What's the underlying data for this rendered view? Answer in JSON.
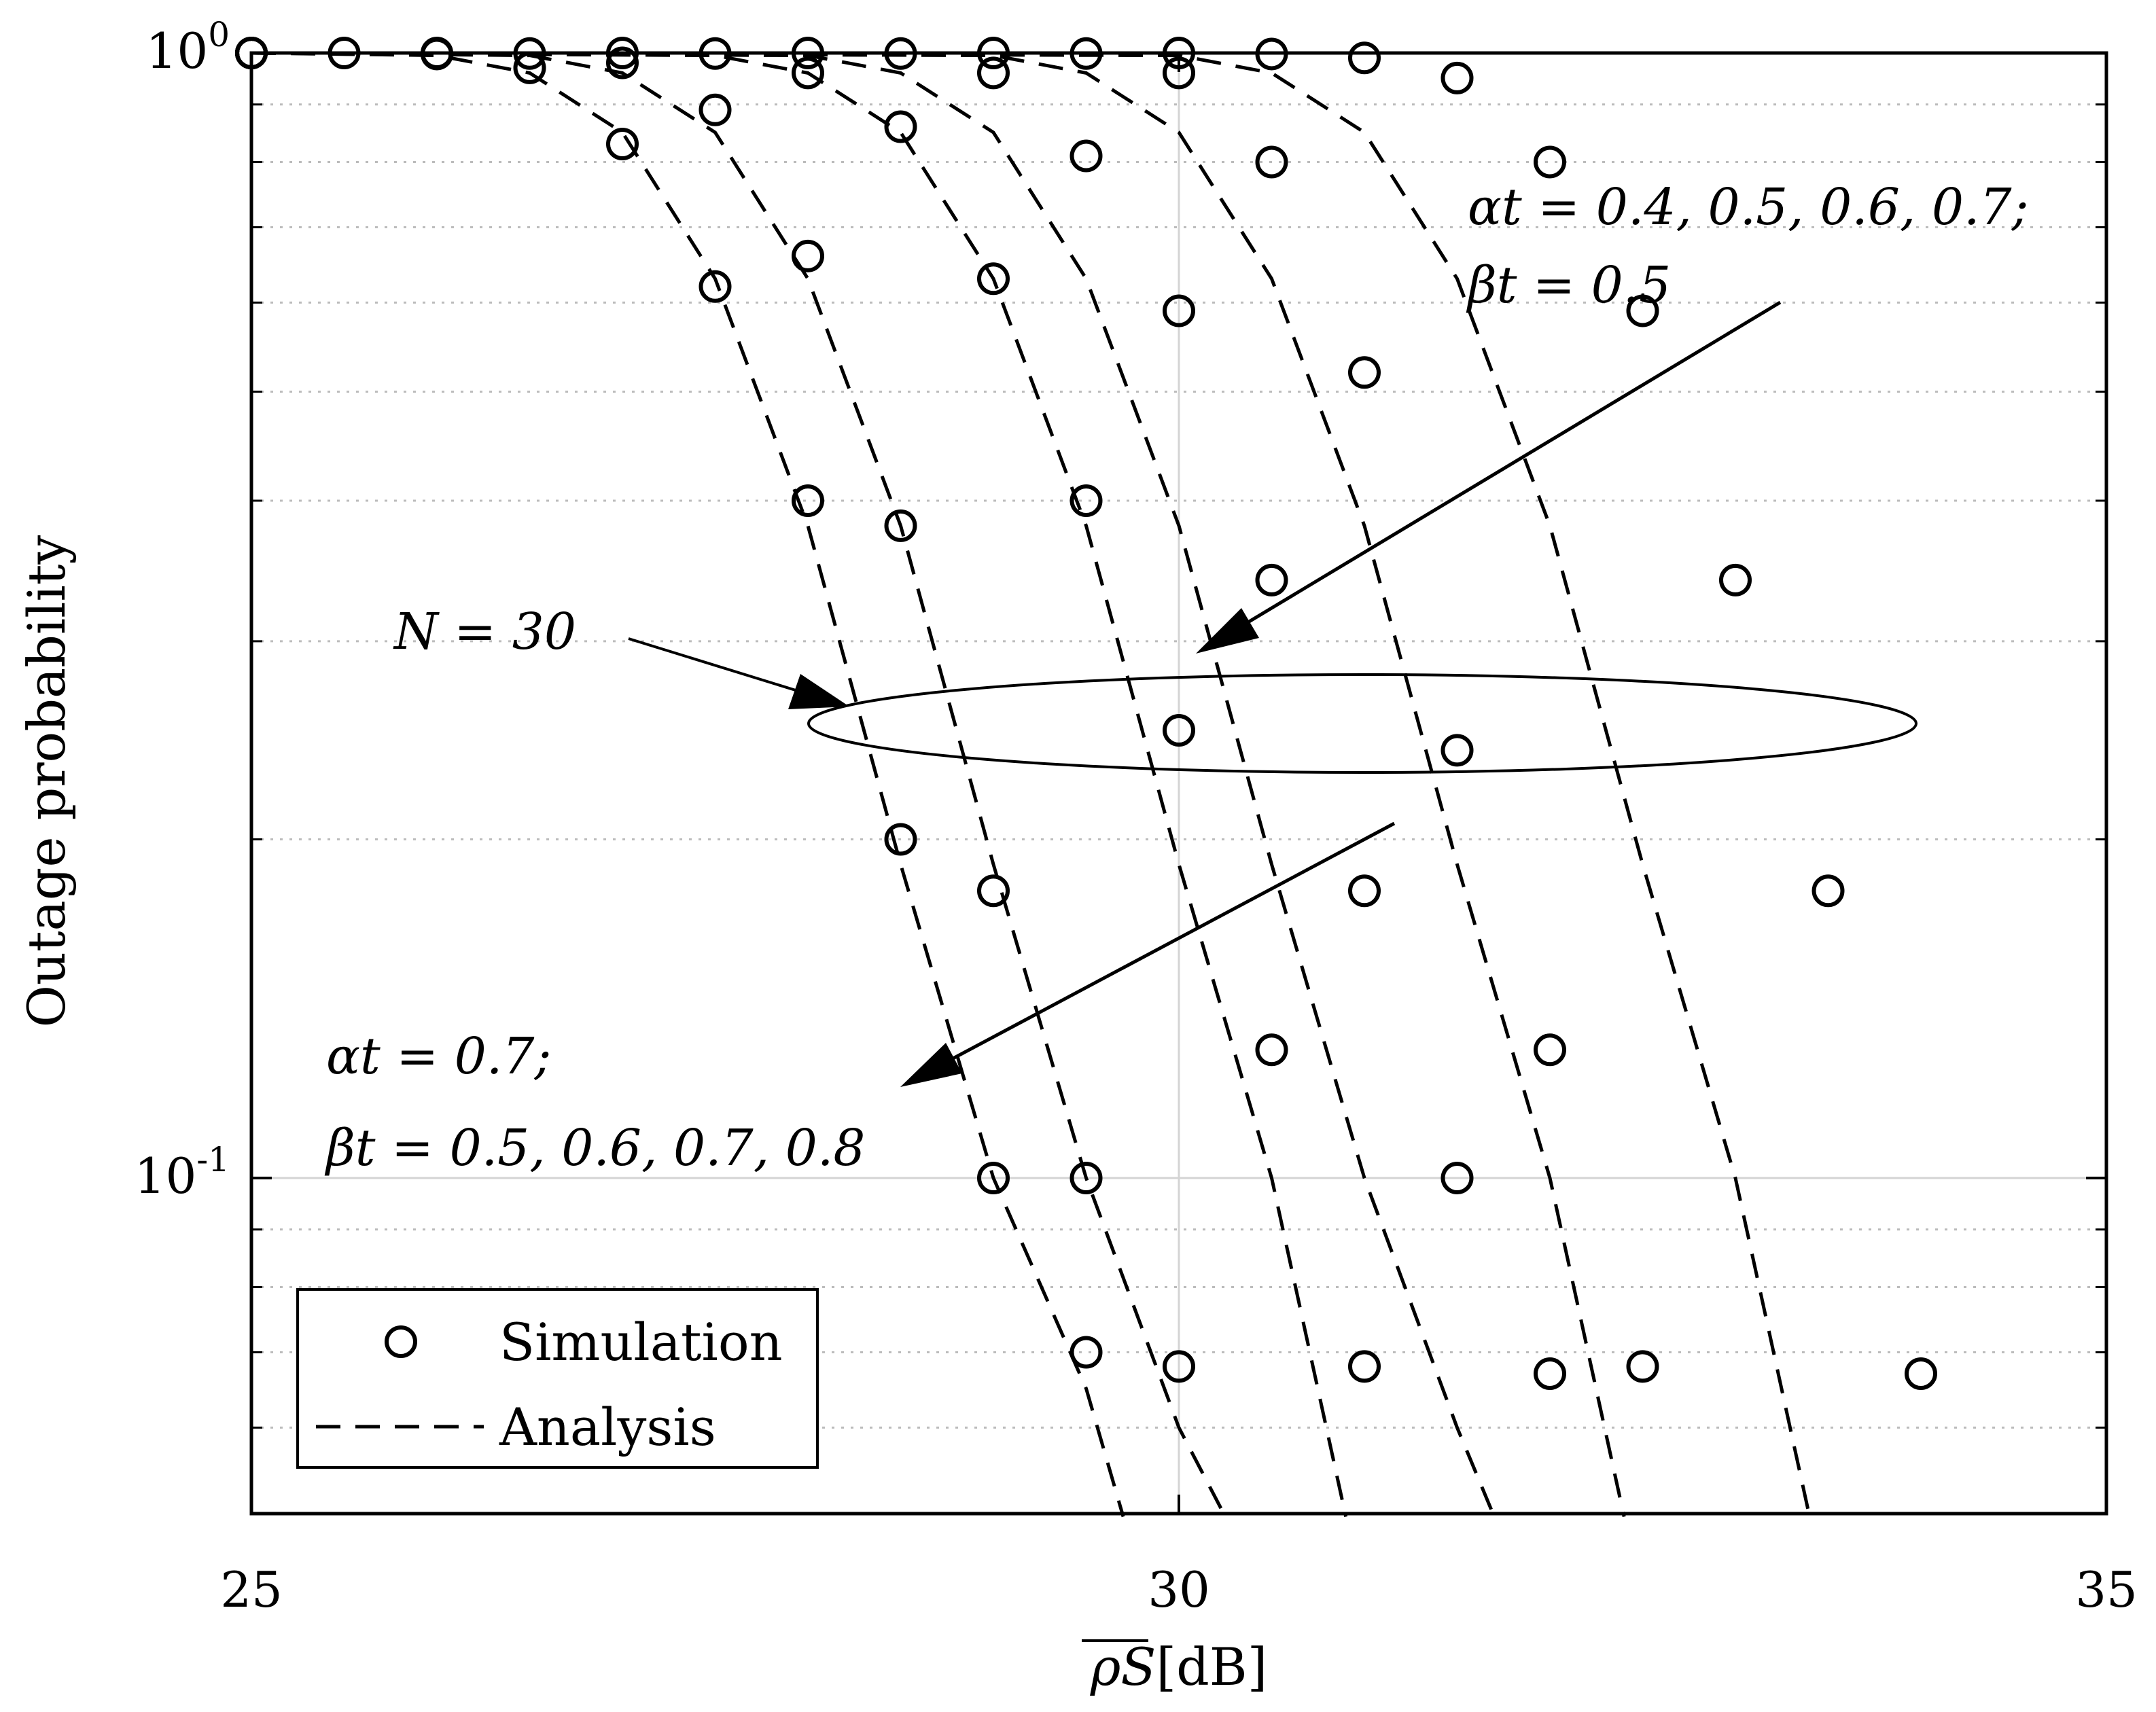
{
  "chart_data": {
    "type": "line",
    "xlabel_math": "ρS",
    "xlabel_unit": "[dB]",
    "ylabel": "Outage probability",
    "xlim": [
      25,
      35
    ],
    "ylim": [
      0.05,
      1
    ],
    "yscale": "log",
    "grid": true,
    "x_ticks": [
      "25",
      "30",
      "35"
    ],
    "y_ticks": [
      {
        "base": "10",
        "exp": "0",
        "value": 1
      },
      {
        "base": "10",
        "exp": "-1",
        "value": 0.1
      }
    ],
    "legend": {
      "position": "bottom-left",
      "entries": [
        {
          "label": "Simulation",
          "style": "circle-marker"
        },
        {
          "label": "Analysis",
          "style": "dashed-line"
        }
      ]
    },
    "annotations": [
      {
        "text": "N = 30"
      },
      {
        "text": "αt = 0.4, 0.5, 0.6, 0.7;"
      },
      {
        "text": "βt = 0.5"
      },
      {
        "text": "αt = 0.7;"
      },
      {
        "text": "βt = 0.5, 0.6, 0.7, 0.8"
      }
    ],
    "series": [
      {
        "analysis": [
          [
            25,
            1
          ],
          [
            26,
            0.995
          ],
          [
            26.5,
            0.96
          ],
          [
            27,
            0.85
          ],
          [
            27.5,
            0.63
          ],
          [
            28,
            0.38
          ],
          [
            28.5,
            0.19
          ],
          [
            29,
            0.1
          ],
          [
            29.5,
            0.065
          ],
          [
            29.7,
            0.05
          ]
        ],
        "simulation": [
          [
            25,
            1
          ],
          [
            25.5,
            1
          ],
          [
            26,
            0.998
          ],
          [
            26.5,
            0.97
          ],
          [
            27,
            0.83
          ],
          [
            27.5,
            0.62
          ],
          [
            28,
            0.4
          ],
          [
            28.5,
            0.2
          ],
          [
            29,
            0.1
          ],
          [
            29.5,
            0.07
          ]
        ]
      },
      {
        "analysis": [
          [
            25,
            1
          ],
          [
            26.5,
            0.995
          ],
          [
            27,
            0.96
          ],
          [
            27.5,
            0.85
          ],
          [
            28,
            0.63
          ],
          [
            28.5,
            0.38
          ],
          [
            29,
            0.19
          ],
          [
            29.5,
            0.1
          ],
          [
            30,
            0.06
          ],
          [
            30.25,
            0.05
          ]
        ],
        "simulation": [
          [
            25,
            1
          ],
          [
            26,
            1
          ],
          [
            26.5,
            0.999
          ],
          [
            27,
            0.98
          ],
          [
            27.5,
            0.89
          ],
          [
            28,
            0.66
          ],
          [
            28.5,
            0.38
          ],
          [
            29,
            0.18
          ],
          [
            29.5,
            0.1
          ],
          [
            30,
            0.068
          ]
        ]
      },
      {
        "analysis": [
          [
            25,
            1
          ],
          [
            27.5,
            0.995
          ],
          [
            28,
            0.96
          ],
          [
            28.5,
            0.85
          ],
          [
            29,
            0.63
          ],
          [
            29.5,
            0.38
          ],
          [
            30,
            0.19
          ],
          [
            30.5,
            0.1
          ],
          [
            30.9,
            0.05
          ]
        ],
        "simulation": [
          [
            25,
            1
          ],
          [
            27,
            1
          ],
          [
            27.5,
            0.999
          ],
          [
            28,
            0.96
          ],
          [
            28.5,
            0.86
          ],
          [
            29,
            0.63
          ],
          [
            29.5,
            0.4
          ],
          [
            30,
            0.25
          ],
          [
            30.5,
            0.13
          ],
          [
            31,
            0.068
          ]
        ]
      },
      {
        "analysis": [
          [
            25,
            1
          ],
          [
            28,
            0.995
          ],
          [
            28.5,
            0.96
          ],
          [
            29,
            0.85
          ],
          [
            29.5,
            0.63
          ],
          [
            30,
            0.38
          ],
          [
            30.5,
            0.19
          ],
          [
            31,
            0.1
          ],
          [
            31.5,
            0.06
          ],
          [
            31.7,
            0.05
          ]
        ],
        "simulation": [
          [
            25,
            1
          ],
          [
            28,
            1
          ],
          [
            28.5,
            0.999
          ],
          [
            29,
            0.96
          ],
          [
            29.5,
            0.81
          ],
          [
            30,
            0.59
          ],
          [
            30.5,
            0.34
          ],
          [
            31,
            0.18
          ],
          [
            31.5,
            0.1
          ],
          [
            32,
            0.067
          ]
        ]
      },
      {
        "analysis": [
          [
            25,
            1
          ],
          [
            29,
            0.995
          ],
          [
            29.5,
            0.96
          ],
          [
            30,
            0.85
          ],
          [
            30.5,
            0.63
          ],
          [
            31,
            0.38
          ],
          [
            31.5,
            0.19
          ],
          [
            32,
            0.1
          ],
          [
            32.4,
            0.05
          ]
        ],
        "simulation": [
          [
            25,
            1
          ],
          [
            29,
            1
          ],
          [
            29.5,
            0.999
          ],
          [
            30,
            0.96
          ],
          [
            30.5,
            0.8
          ],
          [
            31,
            0.52
          ],
          [
            31.5,
            0.24
          ],
          [
            32,
            0.13
          ],
          [
            32.5,
            0.068
          ]
        ]
      },
      {
        "analysis": [
          [
            25,
            1
          ],
          [
            30,
            0.995
          ],
          [
            30.5,
            0.96
          ],
          [
            31,
            0.85
          ],
          [
            31.5,
            0.63
          ],
          [
            32,
            0.38
          ],
          [
            32.5,
            0.19
          ],
          [
            33,
            0.1
          ],
          [
            33.4,
            0.05
          ]
        ],
        "simulation": [
          [
            25,
            1
          ],
          [
            30,
            1
          ],
          [
            30.5,
            0.998
          ],
          [
            31,
            0.99
          ],
          [
            31.5,
            0.95
          ],
          [
            32,
            0.8
          ],
          [
            32.5,
            0.59
          ],
          [
            33,
            0.34
          ],
          [
            33.5,
            0.18
          ],
          [
            34,
            0.067
          ]
        ]
      }
    ]
  }
}
